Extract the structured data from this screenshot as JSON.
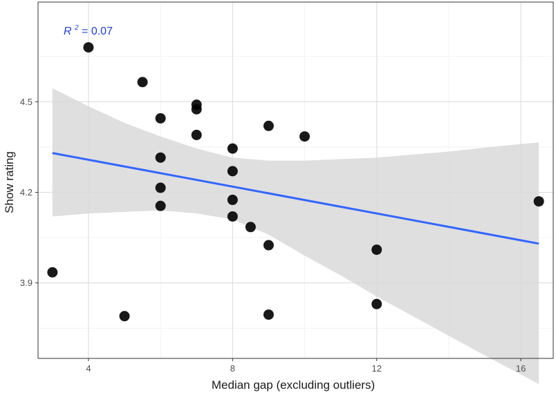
{
  "chart_data": {
    "type": "scatter",
    "xlabel": "Median gap (excluding outliers)",
    "ylabel": "Show rating",
    "xlim": [
      2.6,
      16.9
    ],
    "ylim": [
      3.65,
      4.83
    ],
    "x_ticks": [
      4,
      8,
      12,
      16
    ],
    "y_ticks": [
      3.9,
      4.2,
      4.5
    ],
    "x_tick_labels": [
      "4",
      "8",
      "12",
      "16"
    ],
    "y_tick_labels": [
      "3.9",
      "4.2",
      "4.5"
    ],
    "x_minor_grid": [
      6,
      10,
      14
    ],
    "y_minor_grid": [
      3.75,
      4.05,
      4.35,
      4.65
    ],
    "grid": true,
    "annotation": {
      "r2_label": "R",
      "r2_sup": "2",
      "r2_value": " = 0.07"
    },
    "points": [
      {
        "x": 3,
        "y": 3.935
      },
      {
        "x": 4,
        "y": 4.68
      },
      {
        "x": 5,
        "y": 3.79
      },
      {
        "x": 5.5,
        "y": 4.565
      },
      {
        "x": 6,
        "y": 4.445
      },
      {
        "x": 6,
        "y": 4.315
      },
      {
        "x": 6,
        "y": 4.215
      },
      {
        "x": 6,
        "y": 4.155
      },
      {
        "x": 7,
        "y": 4.49
      },
      {
        "x": 7,
        "y": 4.475
      },
      {
        "x": 7,
        "y": 4.39
      },
      {
        "x": 8,
        "y": 4.345
      },
      {
        "x": 8,
        "y": 4.27
      },
      {
        "x": 8,
        "y": 4.175
      },
      {
        "x": 8,
        "y": 4.12
      },
      {
        "x": 8.5,
        "y": 4.085
      },
      {
        "x": 9,
        "y": 4.42
      },
      {
        "x": 9,
        "y": 4.025
      },
      {
        "x": 9,
        "y": 3.795
      },
      {
        "x": 10,
        "y": 4.385
      },
      {
        "x": 12,
        "y": 4.01
      },
      {
        "x": 12,
        "y": 3.83
      },
      {
        "x": 16.5,
        "y": 4.17
      }
    ],
    "fit_line": {
      "x": [
        3,
        16.5
      ],
      "y": [
        4.33,
        4.03
      ],
      "color": "#3366ff"
    },
    "confidence_band": {
      "color": "#d9d9d9",
      "x": [
        3,
        4,
        5,
        6,
        7,
        8,
        9,
        10,
        11,
        12,
        13,
        14,
        15,
        16,
        16.5
      ],
      "upper": [
        4.545,
        4.485,
        4.43,
        4.385,
        4.345,
        4.315,
        4.305,
        4.305,
        4.31,
        4.315,
        4.325,
        4.335,
        4.348,
        4.36,
        4.365
      ],
      "lower": [
        4.12,
        4.13,
        4.135,
        4.14,
        4.13,
        4.11,
        4.06,
        3.99,
        3.925,
        3.855,
        3.79,
        3.725,
        3.66,
        3.597,
        3.565
      ]
    },
    "point_color": "#000000",
    "panel_border_color": "#333333",
    "grid_major_color": "#d9d9d9",
    "grid_minor_color": "#eeeeee"
  }
}
